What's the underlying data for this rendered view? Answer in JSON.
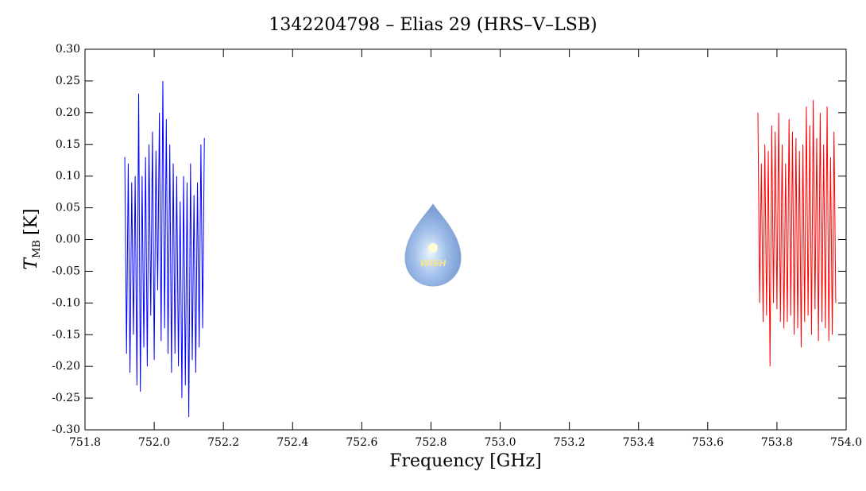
{
  "chart_data": {
    "type": "line",
    "title": "1342204798 – Elias 29 (HRS–V–LSB)",
    "xlabel": "Frequency [GHz]",
    "ylabel": {
      "symbol": "T",
      "subscript": "MB",
      "unit": "[K]"
    },
    "logo_text": "WISH",
    "xlim": [
      751.8,
      754.0
    ],
    "xticks": [
      751.8,
      {
        "value": 752,
        "label": "752.0"
      },
      752.2,
      752.4,
      752.6,
      752.8,
      {
        "value": 753,
        "label": "753.0"
      },
      753.2,
      753.4,
      753.6,
      753.8,
      {
        "value": 754,
        "label": "754.0"
      }
    ],
    "ylim": [
      -0.3,
      0.3
    ],
    "yticks": [
      {
        "value": -0.3,
        "label": "-0.30"
      },
      -0.25,
      {
        "value": -0.2,
        "label": "-0.20"
      },
      -0.15,
      {
        "value": -0.1,
        "label": "-0.10"
      },
      -0.05,
      {
        "value": 0,
        "label": "0.00"
      },
      0.05,
      {
        "value": 0.1,
        "label": "0.10"
      },
      0.15,
      {
        "value": 0.2,
        "label": "0.20"
      },
      0.25,
      {
        "value": 0.3,
        "label": "0.30"
      }
    ],
    "series": [
      {
        "color": "#0000ff",
        "x": [
          751.915,
          751.92,
          751.925,
          751.93,
          751.935,
          751.94,
          751.945,
          751.95,
          751.955,
          751.96,
          751.965,
          751.97,
          751.975,
          751.98,
          751.985,
          751.99,
          751.995,
          752,
          752.005,
          752.01,
          752.015,
          752.02,
          752.025,
          752.03,
          752.035,
          752.04,
          752.045,
          752.05,
          752.055,
          752.06,
          752.065,
          752.07,
          752.075,
          752.08,
          752.085,
          752.09,
          752.095,
          752.1,
          752.105,
          752.11,
          752.115,
          752.12,
          752.125,
          752.13,
          752.135,
          752.14,
          752.145
        ],
        "values": [
          0.13,
          -0.18,
          0.12,
          -0.21,
          0.09,
          -0.15,
          0.1,
          -0.23,
          0.23,
          -0.24,
          0.1,
          -0.17,
          0.13,
          -0.2,
          0.15,
          -0.12,
          0.17,
          -0.19,
          0.14,
          -0.08,
          0.2,
          -0.16,
          0.25,
          -0.14,
          0.19,
          -0.18,
          0.15,
          -0.21,
          0.12,
          -0.18,
          0.1,
          -0.2,
          0.06,
          -0.25,
          0.1,
          -0.23,
          0.09,
          -0.28,
          0.12,
          -0.19,
          0.07,
          -0.21,
          0.09,
          -0.17,
          0.15,
          -0.14,
          0.16
        ]
      },
      {
        "color": "#ff0000",
        "x": [
          753.745,
          753.75,
          753.755,
          753.76,
          753.765,
          753.77,
          753.775,
          753.78,
          753.785,
          753.79,
          753.795,
          753.8,
          753.805,
          753.81,
          753.815,
          753.82,
          753.825,
          753.83,
          753.835,
          753.84,
          753.845,
          753.85,
          753.855,
          753.86,
          753.865,
          753.87,
          753.875,
          753.88,
          753.885,
          753.89,
          753.895,
          753.9,
          753.905,
          753.91,
          753.915,
          753.92,
          753.925,
          753.93,
          753.935,
          753.94,
          753.945,
          753.95,
          753.955,
          753.96,
          753.965,
          753.97
        ],
        "values": [
          0.2,
          -0.1,
          0.12,
          -0.13,
          0.15,
          -0.12,
          0.14,
          -0.2,
          0.18,
          -0.1,
          0.17,
          -0.11,
          0.2,
          -0.13,
          0.15,
          -0.14,
          0.12,
          -0.13,
          0.19,
          -0.12,
          0.17,
          -0.15,
          0.16,
          -0.14,
          0.14,
          -0.17,
          0.15,
          -0.13,
          0.21,
          -0.12,
          0.18,
          -0.15,
          0.22,
          -0.11,
          0.16,
          -0.16,
          0.2,
          -0.13,
          0.15,
          -0.14,
          0.21,
          -0.16,
          0.13,
          -0.15,
          0.17,
          -0.1
        ]
      }
    ]
  }
}
